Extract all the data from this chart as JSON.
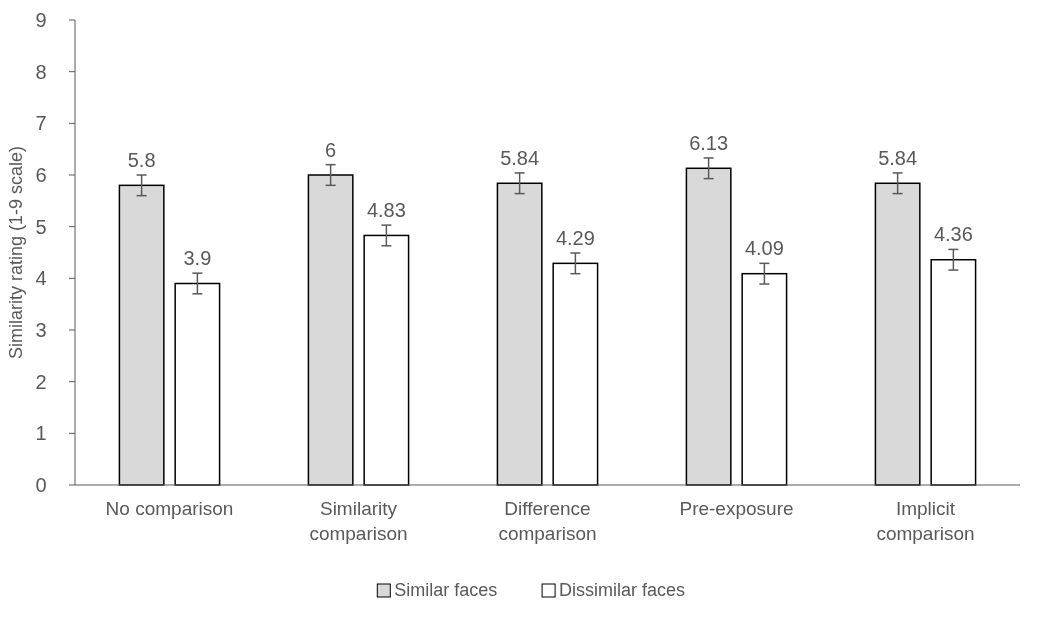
{
  "chart_data": {
    "type": "bar",
    "ylabel": "Similarity rating (1-9 scale)",
    "categories": [
      "No comparison",
      "Similarity comparison",
      "Difference comparison",
      "Pre-exposure",
      "Implicit comparison"
    ],
    "series": [
      {
        "name": "Similar faces",
        "color": "#d9d9d9",
        "values": [
          5.8,
          6,
          5.84,
          6.13,
          5.84
        ],
        "errors": [
          0.2,
          0.2,
          0.2,
          0.2,
          0.2
        ]
      },
      {
        "name": "Dissimilar faces",
        "color": "#ffffff",
        "values": [
          3.9,
          4.83,
          4.29,
          4.09,
          4.36
        ],
        "errors": [
          0.2,
          0.2,
          0.2,
          0.2,
          0.2
        ]
      }
    ],
    "ylim": [
      0,
      9
    ],
    "yticks": [
      0,
      1,
      2,
      3,
      4,
      5,
      6,
      7,
      8,
      9
    ],
    "data_labels": true,
    "legend": "bottom",
    "grid": false
  }
}
